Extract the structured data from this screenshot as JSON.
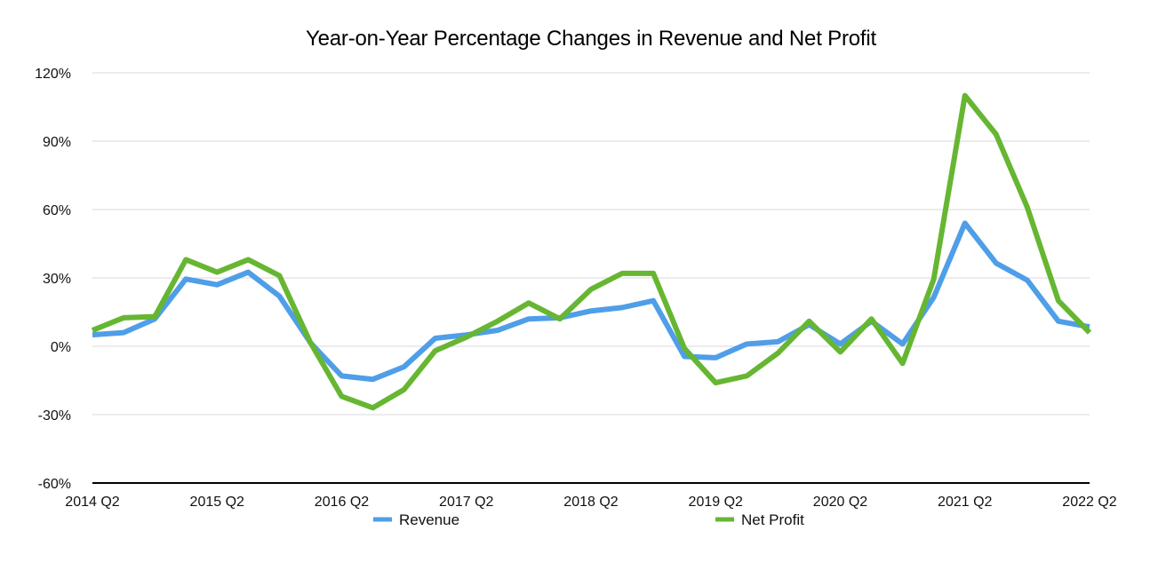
{
  "chart_data": {
    "type": "line",
    "title": "Year-on-Year Percentage Changes in Revenue and Net Profit",
    "xlabel": "",
    "ylabel": "",
    "ylim": [
      -60,
      120
    ],
    "y_ticks": [
      120,
      90,
      60,
      30,
      0,
      -30,
      -60
    ],
    "y_tick_labels": [
      "120%",
      "90%",
      "60%",
      "30%",
      "0%",
      "-30%",
      "-60%"
    ],
    "x": [
      "2014 Q2",
      "2014 Q3",
      "2014 Q4",
      "2015 Q1",
      "2015 Q2",
      "2015 Q3",
      "2015 Q4",
      "2016 Q1",
      "2016 Q2",
      "2016 Q3",
      "2016 Q4",
      "2017 Q1",
      "2017 Q2",
      "2017 Q3",
      "2017 Q4",
      "2018 Q1",
      "2018 Q2",
      "2018 Q3",
      "2018 Q4",
      "2019 Q1",
      "2019 Q2",
      "2019 Q3",
      "2019 Q4",
      "2020 Q1",
      "2020 Q2",
      "2020 Q3",
      "2020 Q4",
      "2021 Q1",
      "2021 Q2",
      "2021 Q3",
      "2021 Q4",
      "2022 Q1",
      "2022 Q2"
    ],
    "x_tick_labels": [
      "2014 Q2",
      "2015 Q2",
      "2016 Q2",
      "2017 Q2",
      "2018 Q2",
      "2019 Q2",
      "2020 Q2",
      "2021 Q2",
      "2022 Q2"
    ],
    "grid": true,
    "legend_position": "bottom",
    "series": [
      {
        "name": "Revenue",
        "color": "#4f9ee8",
        "values": [
          5,
          6,
          12,
          29.5,
          27,
          32.5,
          22,
          1.5,
          -13,
          -14.5,
          -9,
          3.5,
          5,
          7,
          12,
          12.5,
          15.5,
          17,
          20,
          -4.5,
          -5,
          1,
          2,
          9.5,
          1,
          11,
          1,
          21.5,
          54,
          36.5,
          29,
          11,
          8.5
        ]
      },
      {
        "name": "Net Profit",
        "color": "#66b632",
        "values": [
          7,
          12.5,
          13,
          38,
          32.5,
          38,
          31,
          1.5,
          -22,
          -27,
          -19,
          -2,
          4,
          11,
          19,
          12,
          25,
          32,
          32,
          -1,
          -16,
          -13,
          -3,
          11,
          -2.5,
          12,
          -7.5,
          29.5,
          110,
          93,
          61,
          20,
          6
        ]
      }
    ]
  }
}
